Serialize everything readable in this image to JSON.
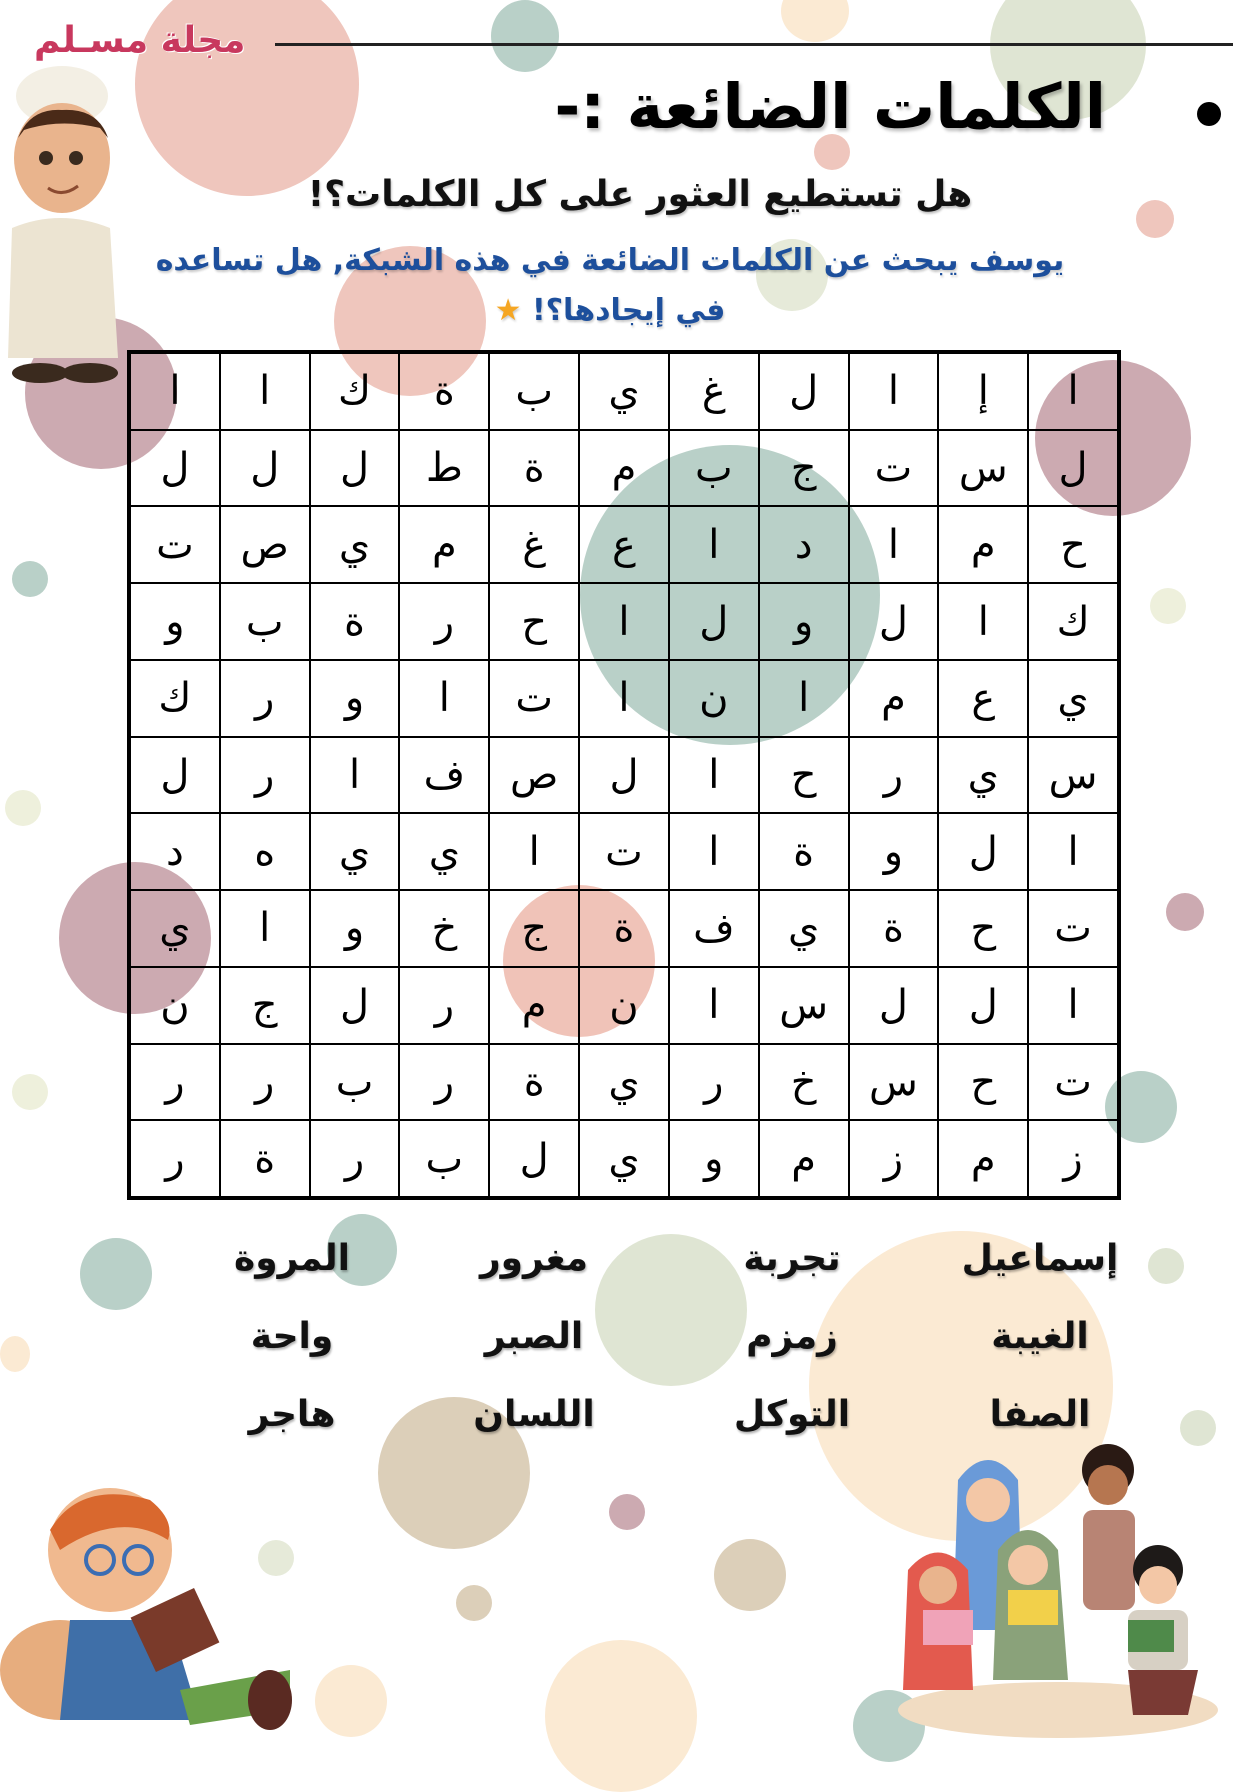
{
  "header": {
    "magazine_name": "مجلة مسـلم",
    "title": "الكلمات الضائعة :-",
    "subtitle": "هل تستطيع العثور على كل الكلمات؟!",
    "instruction": "يوسف يبحث عن الكلمات الضائعة في هذه الشبكة, هل تساعده في إيجادها؟!",
    "instruction_icon": "star-emoji"
  },
  "colors": {
    "magazine": "#c8385e",
    "instruction": "#1d4f9c",
    "grid_line": "#000000"
  },
  "grid": [
    [
      "ا",
      "ا",
      "ك",
      "ة",
      "ب",
      "ي",
      "غ",
      "ل",
      "ا",
      "إ",
      "ا"
    ],
    [
      "ل",
      "ل",
      "ل",
      "ط",
      "ة",
      "م",
      "ب",
      "ج",
      "ت",
      "س",
      "ل"
    ],
    [
      "ت",
      "ص",
      "ي",
      "م",
      "غ",
      "ع",
      "ا",
      "د",
      "ا",
      "م",
      "ح"
    ],
    [
      "و",
      "ب",
      "ة",
      "ر",
      "ح",
      "ا",
      "ل",
      "و",
      "ل",
      "ا",
      "ك"
    ],
    [
      "ك",
      "ر",
      "و",
      "ا",
      "ت",
      "ا",
      "ن",
      "ا",
      "م",
      "ع",
      "ي"
    ],
    [
      "ل",
      "ر",
      "ا",
      "ف",
      "ص",
      "ل",
      "ا",
      "ح",
      "ر",
      "ي",
      "س"
    ],
    [
      "د",
      "ه",
      "ي",
      "ي",
      "ا",
      "ت",
      "ا",
      "ة",
      "و",
      "ل",
      "ا"
    ],
    [
      "ي",
      "ا",
      "و",
      "خ",
      "ج",
      "ة",
      "ف",
      "ي",
      "ة",
      "ح",
      "ت"
    ],
    [
      "ن",
      "ج",
      "ل",
      "ر",
      "م",
      "ن",
      "ا",
      "س",
      "ل",
      "ل",
      "ا"
    ],
    [
      "ر",
      "ر",
      "ب",
      "ر",
      "ة",
      "ي",
      "ر",
      "خ",
      "س",
      "ح",
      "ت"
    ],
    [
      "ر",
      "ة",
      "ر",
      "ب",
      "ل",
      "ي",
      "و",
      "م",
      "ز",
      "م",
      "ز"
    ]
  ],
  "word_list": [
    [
      "إسماعيل",
      "تجربة",
      "مغرور",
      "المروة"
    ],
    [
      "الغيبة",
      "زمزم",
      "الصبر",
      "واحة"
    ],
    [
      "الصفا",
      "التوكل",
      "اللسان",
      "هاجر"
    ]
  ]
}
